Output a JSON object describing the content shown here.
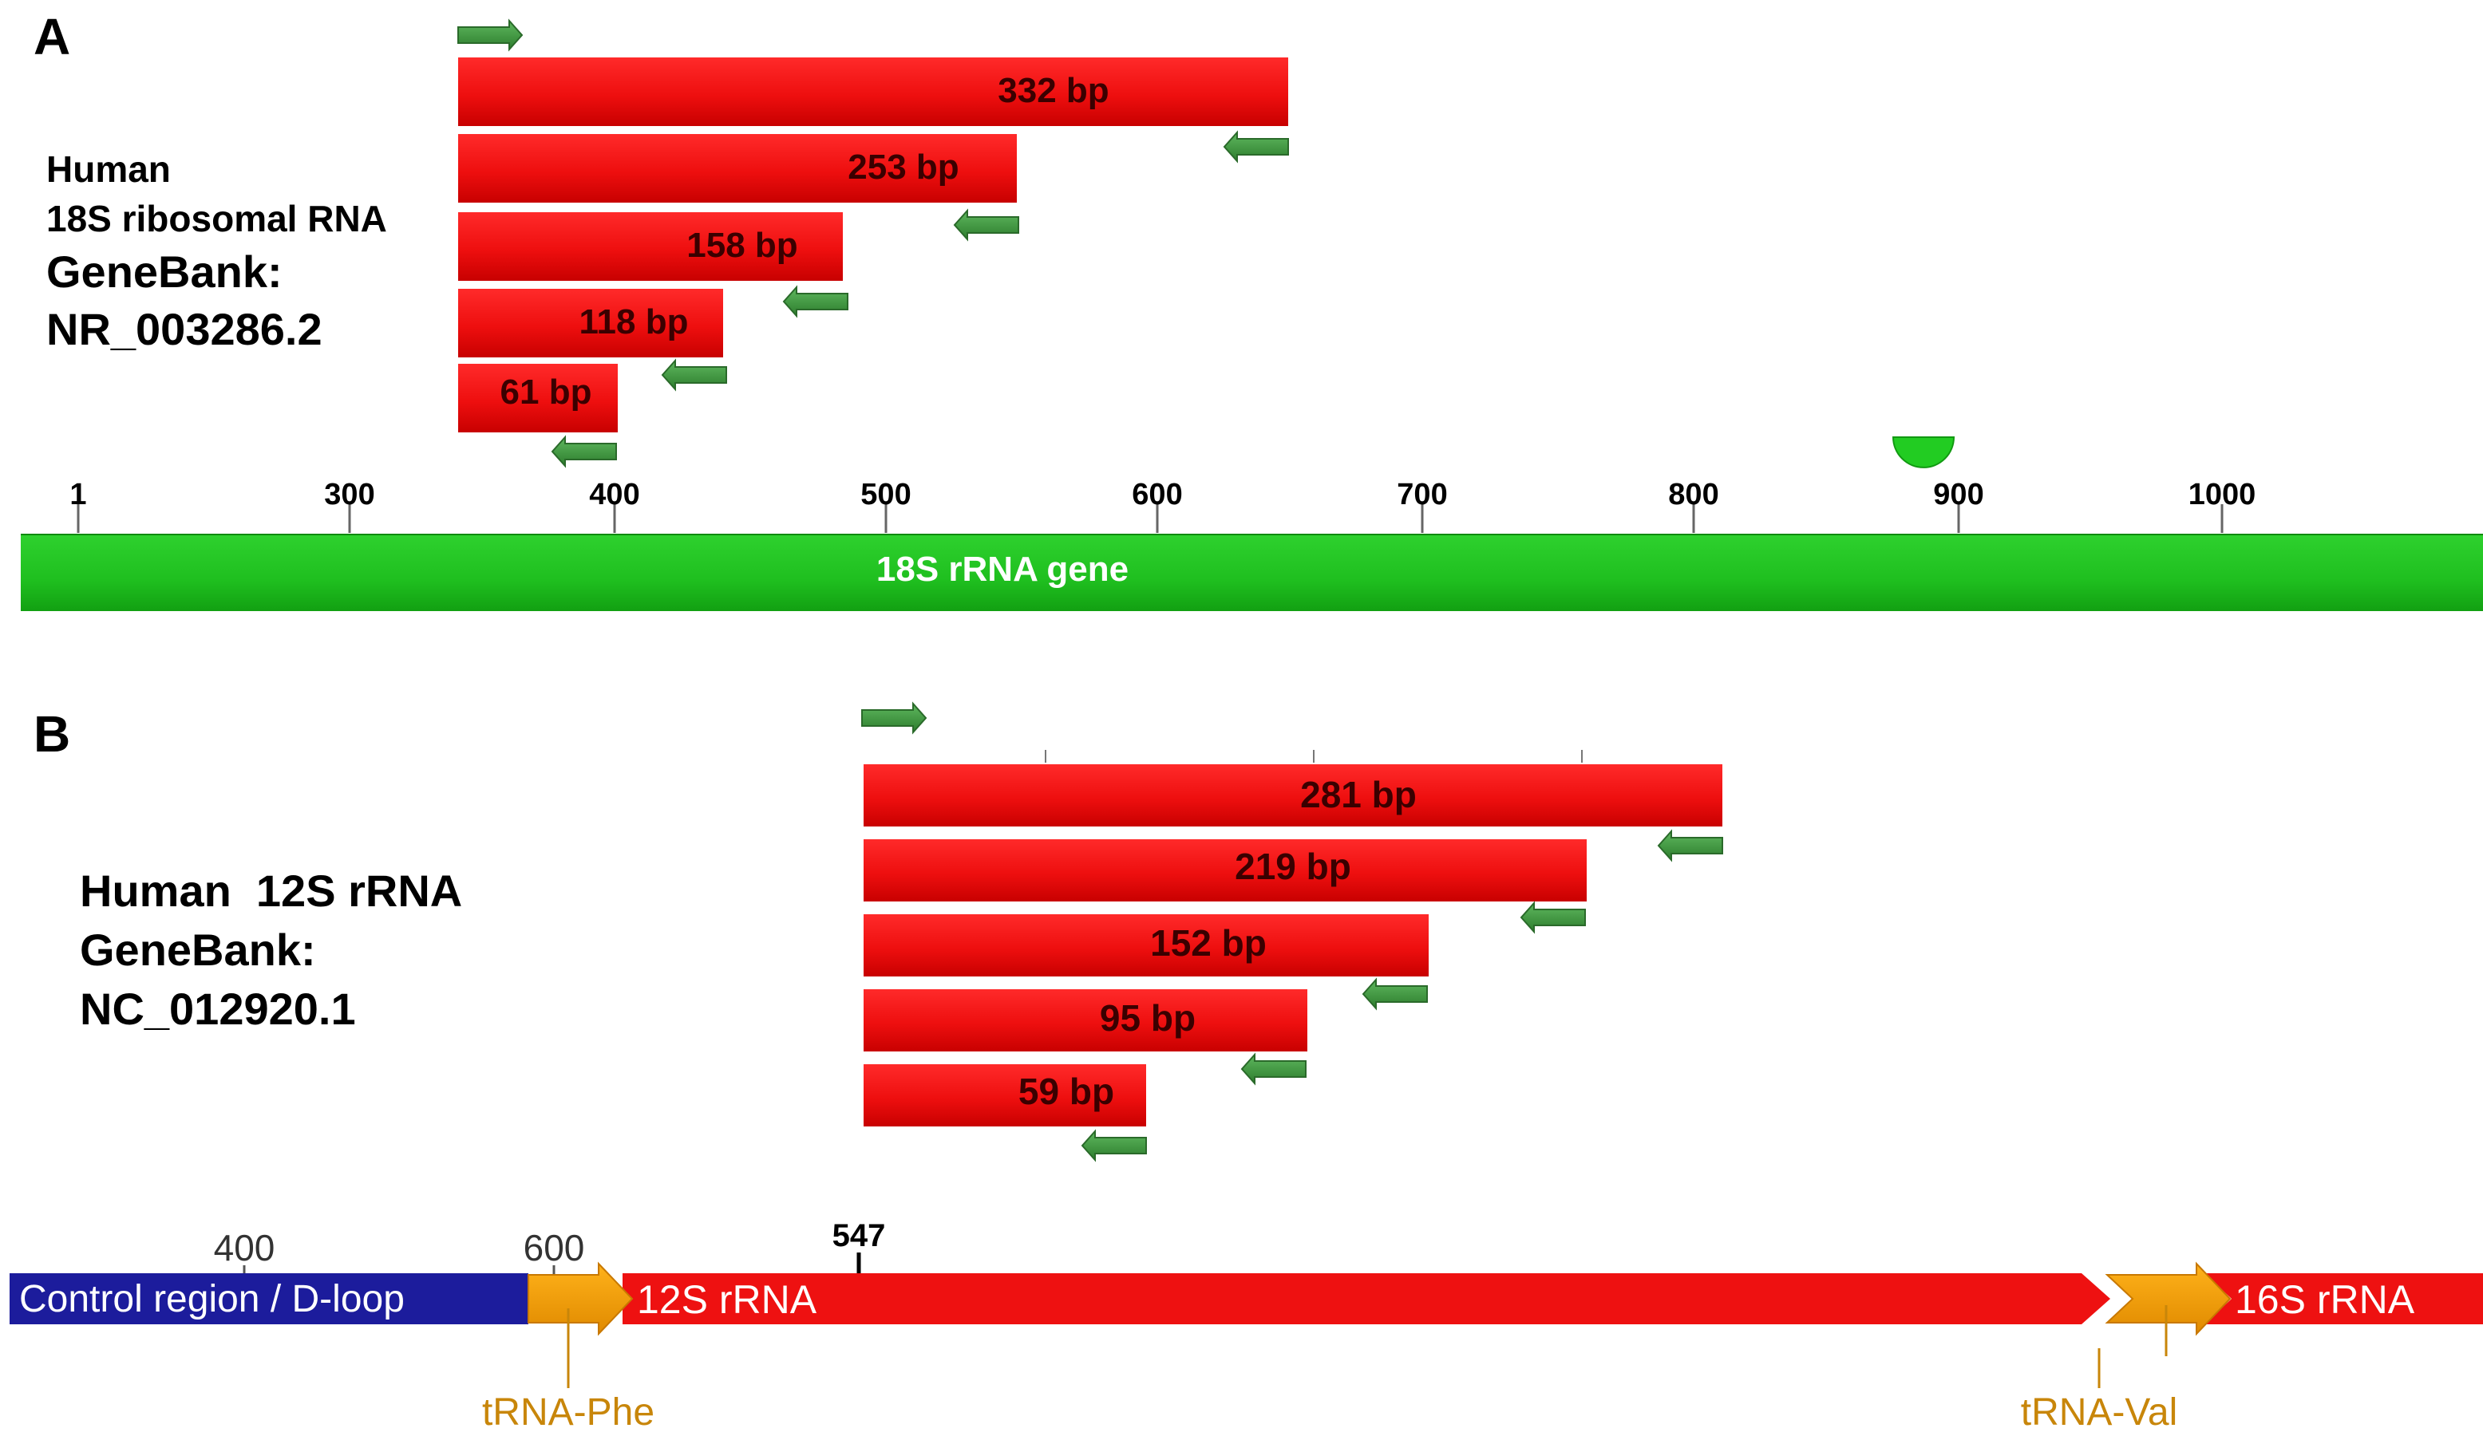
{
  "panel_a": {
    "letter": "A",
    "info": [
      "Human",
      "18S ribosomal RNA",
      "GeneBank:",
      "NR_003286.2"
    ],
    "amplicons": [
      {
        "label": "332 bp"
      },
      {
        "label": "253 bp"
      },
      {
        "label": "158 bp"
      },
      {
        "label": "118 bp"
      },
      {
        "label": "61 bp"
      }
    ],
    "ruler_ticks": [
      "1",
      "300",
      "400",
      "500",
      "600",
      "700",
      "800",
      "900",
      "1000"
    ],
    "gene_label": "18S rRNA gene"
  },
  "panel_b": {
    "letter": "B",
    "info": [
      "Human  12S rRNA",
      "GeneBank:",
      "NC_012920.1"
    ],
    "amplicons": [
      {
        "label": "281 bp"
      },
      {
        "label": "219 bp"
      },
      {
        "label": "152 bp"
      },
      {
        "label": "95 bp"
      },
      {
        "label": "59 bp"
      }
    ],
    "map_ticks": [
      "400",
      "600",
      "547"
    ],
    "features": {
      "control_region": "Control region / D-loop",
      "rrna_12s": "12S rRNA",
      "rrna_16s": "16S rRNA",
      "trna_phe": "tRNA-Phe",
      "trna_val": "tRNA-Val"
    }
  },
  "colors": {
    "amplicon_red": "#ee1111",
    "primer_green": "#3f9a3f",
    "gene_green": "#22bb22",
    "control_blue": "#1f1fa0",
    "trna_orange": "#f2a100",
    "trna_label": "#c8860a"
  }
}
